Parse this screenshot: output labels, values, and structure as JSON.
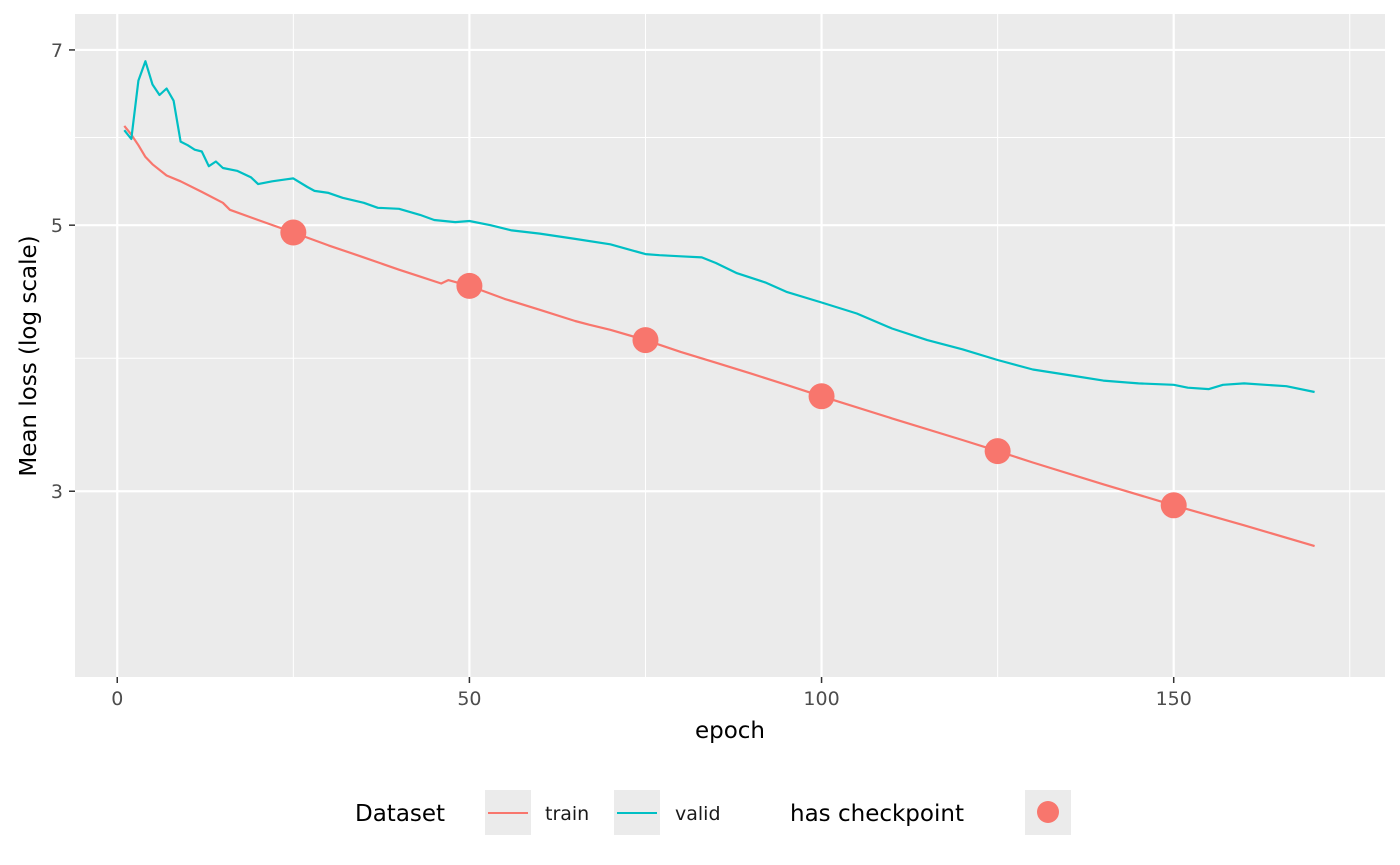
{
  "chart_data": {
    "type": "line",
    "xlabel": "epoch",
    "ylabel": "Mean loss (log scale)",
    "y_scale": "log",
    "xlim": [
      -6,
      180
    ],
    "ylim": [
      2.1,
      7.5
    ],
    "x_ticks": [
      0,
      50,
      100,
      150
    ],
    "x_tick_labels": [
      "0",
      "50",
      "100",
      "150"
    ],
    "y_ticks": [
      3,
      5,
      7
    ],
    "y_tick_labels": [
      "3",
      "5",
      "7"
    ],
    "grid": true,
    "panel_background": "#ebebeb",
    "legend_position": "bottom",
    "legend": {
      "color_title": "Dataset",
      "checkpoint_title": "has checkpoint"
    },
    "series": [
      {
        "name": "train",
        "color": "#F8766D",
        "points": [
          [
            1,
            6.05
          ],
          [
            2,
            5.95
          ],
          [
            3,
            5.83
          ],
          [
            4,
            5.7
          ],
          [
            5,
            5.62
          ],
          [
            7,
            5.5
          ],
          [
            9,
            5.44
          ],
          [
            12,
            5.33
          ],
          [
            15,
            5.22
          ],
          [
            16,
            5.15
          ],
          [
            20,
            5.05
          ],
          [
            25,
            4.93
          ],
          [
            30,
            4.81
          ],
          [
            35,
            4.7
          ],
          [
            40,
            4.59
          ],
          [
            43,
            4.53
          ],
          [
            46,
            4.47
          ],
          [
            47,
            4.5
          ],
          [
            50,
            4.45
          ],
          [
            55,
            4.34
          ],
          [
            60,
            4.25
          ],
          [
            65,
            4.16
          ],
          [
            67,
            4.13
          ],
          [
            70,
            4.09
          ],
          [
            75,
            4.01
          ],
          [
            80,
            3.92
          ],
          [
            85,
            3.84
          ],
          [
            90,
            3.76
          ],
          [
            95,
            3.68
          ],
          [
            100,
            3.6
          ],
          [
            110,
            3.45
          ],
          [
            120,
            3.31
          ],
          [
            125,
            3.24
          ],
          [
            130,
            3.17
          ],
          [
            140,
            3.04
          ],
          [
            150,
            2.92
          ],
          [
            160,
            2.81
          ],
          [
            170,
            2.7
          ]
        ]
      },
      {
        "name": "valid",
        "color": "#00BFC4",
        "points": [
          [
            1,
            6.0
          ],
          [
            2,
            5.9
          ],
          [
            3,
            6.6
          ],
          [
            4,
            6.85
          ],
          [
            5,
            6.55
          ],
          [
            6,
            6.42
          ],
          [
            7,
            6.5
          ],
          [
            8,
            6.35
          ],
          [
            9,
            5.87
          ],
          [
            10,
            5.83
          ],
          [
            11,
            5.78
          ],
          [
            12,
            5.76
          ],
          [
            13,
            5.6
          ],
          [
            14,
            5.65
          ],
          [
            15,
            5.58
          ],
          [
            17,
            5.55
          ],
          [
            19,
            5.48
          ],
          [
            20,
            5.41
          ],
          [
            22,
            5.44
          ],
          [
            24,
            5.46
          ],
          [
            25,
            5.47
          ],
          [
            27,
            5.38
          ],
          [
            28,
            5.34
          ],
          [
            30,
            5.32
          ],
          [
            32,
            5.27
          ],
          [
            35,
            5.22
          ],
          [
            37,
            5.17
          ],
          [
            40,
            5.16
          ],
          [
            43,
            5.1
          ],
          [
            45,
            5.05
          ],
          [
            48,
            5.03
          ],
          [
            50,
            5.04
          ],
          [
            53,
            5.0
          ],
          [
            56,
            4.95
          ],
          [
            60,
            4.92
          ],
          [
            65,
            4.87
          ],
          [
            70,
            4.82
          ],
          [
            75,
            4.73
          ],
          [
            77,
            4.72
          ],
          [
            80,
            4.71
          ],
          [
            83,
            4.7
          ],
          [
            85,
            4.65
          ],
          [
            88,
            4.56
          ],
          [
            92,
            4.48
          ],
          [
            95,
            4.4
          ],
          [
            100,
            4.31
          ],
          [
            105,
            4.22
          ],
          [
            110,
            4.1
          ],
          [
            115,
            4.01
          ],
          [
            120,
            3.94
          ],
          [
            125,
            3.86
          ],
          [
            130,
            3.79
          ],
          [
            135,
            3.75
          ],
          [
            140,
            3.71
          ],
          [
            145,
            3.69
          ],
          [
            150,
            3.68
          ],
          [
            152,
            3.66
          ],
          [
            155,
            3.65
          ],
          [
            157,
            3.68
          ],
          [
            160,
            3.69
          ],
          [
            163,
            3.68
          ],
          [
            166,
            3.67
          ],
          [
            170,
            3.63
          ]
        ]
      }
    ],
    "checkpoints": {
      "name": "has checkpoint",
      "color": "#F8766D",
      "points": [
        [
          25,
          4.93
        ],
        [
          50,
          4.45
        ],
        [
          75,
          4.01
        ],
        [
          100,
          3.6
        ],
        [
          125,
          3.24
        ],
        [
          150,
          2.92
        ]
      ]
    }
  }
}
